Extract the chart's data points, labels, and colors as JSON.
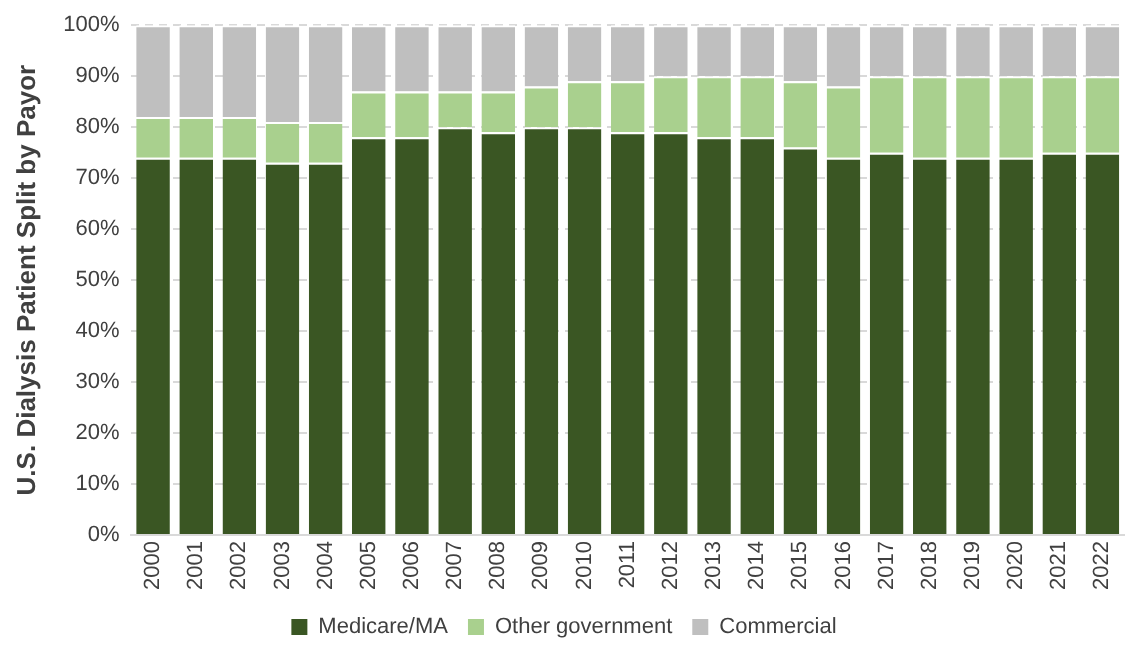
{
  "chart_data": {
    "type": "bar",
    "stacked": true,
    "ylabel": "U.S. Dialysis Patient Split by Payor",
    "categories": [
      "2000",
      "2001",
      "2002",
      "2003",
      "2004",
      "2005",
      "2006",
      "2007",
      "2008",
      "2009",
      "2010",
      "2011",
      "2012",
      "2013",
      "2014",
      "2015",
      "2016",
      "2017",
      "2018",
      "2019",
      "2020",
      "2021",
      "2022"
    ],
    "series": [
      {
        "name": "Medicare/MA",
        "color": "#3a5623",
        "values": [
          74,
          74,
          74,
          73,
          73,
          78,
          78,
          80,
          79,
          80,
          80,
          79,
          79,
          78,
          78,
          76,
          74,
          75,
          74,
          74,
          74,
          75,
          75
        ]
      },
      {
        "name": "Other government",
        "color": "#a9d08e",
        "values": [
          8,
          8,
          8,
          8,
          8,
          9,
          9,
          7,
          8,
          8,
          9,
          10,
          11,
          12,
          12,
          13,
          14,
          15,
          16,
          16,
          16,
          15,
          15
        ]
      },
      {
        "name": "Commercial",
        "color": "#bfbfbf",
        "values": [
          18,
          18,
          18,
          19,
          19,
          13,
          13,
          13,
          13,
          12,
          11,
          11,
          10,
          10,
          10,
          11,
          12,
          10,
          10,
          10,
          10,
          10,
          10
        ]
      }
    ],
    "ylim": [
      0,
      100
    ],
    "yticks": [
      {
        "value": 0,
        "label": "0%"
      },
      {
        "value": 10,
        "label": "10%"
      },
      {
        "value": 20,
        "label": "20%"
      },
      {
        "value": 30,
        "label": "30%"
      },
      {
        "value": 40,
        "label": "40%"
      },
      {
        "value": 50,
        "label": "50%"
      },
      {
        "value": 60,
        "label": "60%"
      },
      {
        "value": 70,
        "label": "70%"
      },
      {
        "value": 80,
        "label": "80%"
      },
      {
        "value": 90,
        "label": "90%"
      },
      {
        "value": 100,
        "label": "100%"
      }
    ],
    "grid": "y",
    "legend": "bottom"
  }
}
